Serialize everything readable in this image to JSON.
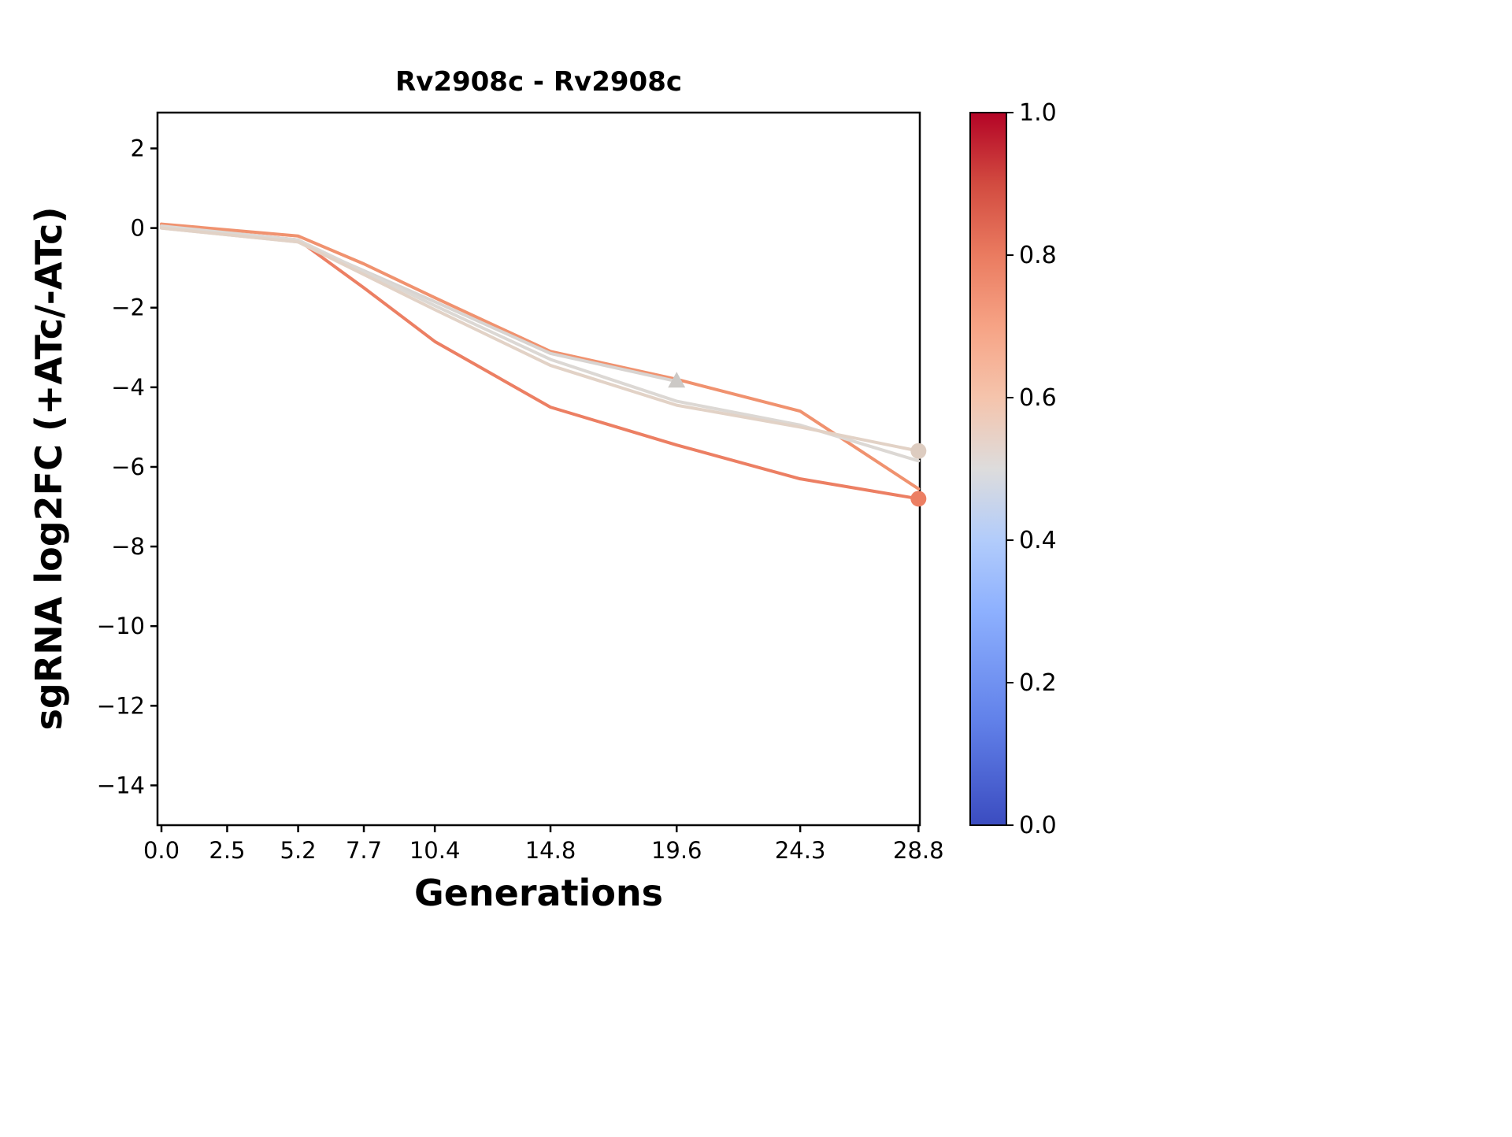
{
  "chart_data": {
    "type": "line",
    "title": "Rv2908c - Rv2908c",
    "xlabel": "Generations",
    "ylabel": "sgRNA log2FC (+ATc/-ATc)",
    "xlim": [
      -0.15,
      28.85
    ],
    "ylim": [
      -15.0,
      2.9
    ],
    "grid": false,
    "legend": "none",
    "x_ticks": {
      "values": [
        0.0,
        2.5,
        5.2,
        7.7,
        10.4,
        14.8,
        19.6,
        24.3,
        28.8
      ],
      "labels": [
        "0.0",
        "2.5",
        "5.2",
        "7.7",
        "10.4",
        "14.8",
        "19.6",
        "24.3",
        "28.8"
      ]
    },
    "y_ticks": {
      "values": [
        2,
        0,
        -2,
        -4,
        -6,
        -8,
        -10,
        -12,
        -14
      ],
      "labels": [
        "2",
        "0",
        "−2",
        "−4",
        "−6",
        "−8",
        "−10",
        "−12",
        "−14"
      ]
    },
    "series": [
      {
        "color": "#ec7f63",
        "end_marker": "circle",
        "marker_color": "#ec7f63",
        "points": [
          [
            0,
            0.05
          ],
          [
            5.2,
            -0.3
          ],
          [
            7.7,
            -1.5
          ],
          [
            10.4,
            -2.85
          ],
          [
            14.8,
            -4.5
          ],
          [
            19.6,
            -5.45
          ],
          [
            24.3,
            -6.3
          ],
          [
            28.8,
            -6.8
          ]
        ]
      },
      {
        "color": "#f0926f",
        "end_marker": "none",
        "marker_color": "#f0926f",
        "points": [
          [
            0,
            0.1
          ],
          [
            5.2,
            -0.2
          ],
          [
            7.7,
            -0.9
          ],
          [
            10.4,
            -1.75
          ],
          [
            14.8,
            -3.1
          ],
          [
            19.6,
            -3.8
          ],
          [
            24.3,
            -4.6
          ],
          [
            28.8,
            -6.55
          ]
        ]
      },
      {
        "color": "#d8d4d1",
        "end_marker": "triangle",
        "marker_color": "#ccc9c6",
        "points": [
          [
            0,
            0.0
          ],
          [
            5.2,
            -0.35
          ],
          [
            10.4,
            -1.85
          ],
          [
            14.8,
            -3.15
          ],
          [
            19.6,
            -3.85
          ]
        ]
      },
      {
        "color": "#dcd8d4",
        "end_marker": "none",
        "marker_color": "#dcd8d4",
        "points": [
          [
            0,
            0.05
          ],
          [
            5.2,
            -0.3
          ],
          [
            10.4,
            -1.95
          ],
          [
            14.8,
            -3.3
          ],
          [
            19.6,
            -4.35
          ],
          [
            24.3,
            -4.95
          ],
          [
            28.8,
            -5.85
          ]
        ]
      },
      {
        "color": "#e2d2c6",
        "end_marker": "circle",
        "marker_color": "#ddccc0",
        "points": [
          [
            0,
            0.0
          ],
          [
            5.2,
            -0.35
          ],
          [
            10.4,
            -2.05
          ],
          [
            14.8,
            -3.45
          ],
          [
            19.6,
            -4.45
          ],
          [
            24.3,
            -5.0
          ],
          [
            28.8,
            -5.6
          ]
        ]
      }
    ],
    "colorbar": {
      "ticks": {
        "values": [
          1.0,
          0.8,
          0.6,
          0.4,
          0.2,
          0.0
        ],
        "labels": [
          "1.0",
          "0.8",
          "0.6",
          "0.4",
          "0.2",
          "0.0"
        ]
      },
      "gradient": [
        {
          "offset": 0.0,
          "color": "#3b4cc0"
        },
        {
          "offset": 0.15,
          "color": "#6282ea"
        },
        {
          "offset": 0.3,
          "color": "#8db0fe"
        },
        {
          "offset": 0.4,
          "color": "#b2ccfb"
        },
        {
          "offset": 0.5,
          "color": "#dddcdc"
        },
        {
          "offset": 0.6,
          "color": "#f5c4ac"
        },
        {
          "offset": 0.7,
          "color": "#f6a385"
        },
        {
          "offset": 0.8,
          "color": "#ea7b60"
        },
        {
          "offset": 0.9,
          "color": "#d24b40"
        },
        {
          "offset": 1.0,
          "color": "#b40426"
        }
      ]
    },
    "style": {
      "axis_color": "#000000",
      "background": "#ffffff",
      "line_width": 4,
      "spine_width": 2.5
    }
  }
}
